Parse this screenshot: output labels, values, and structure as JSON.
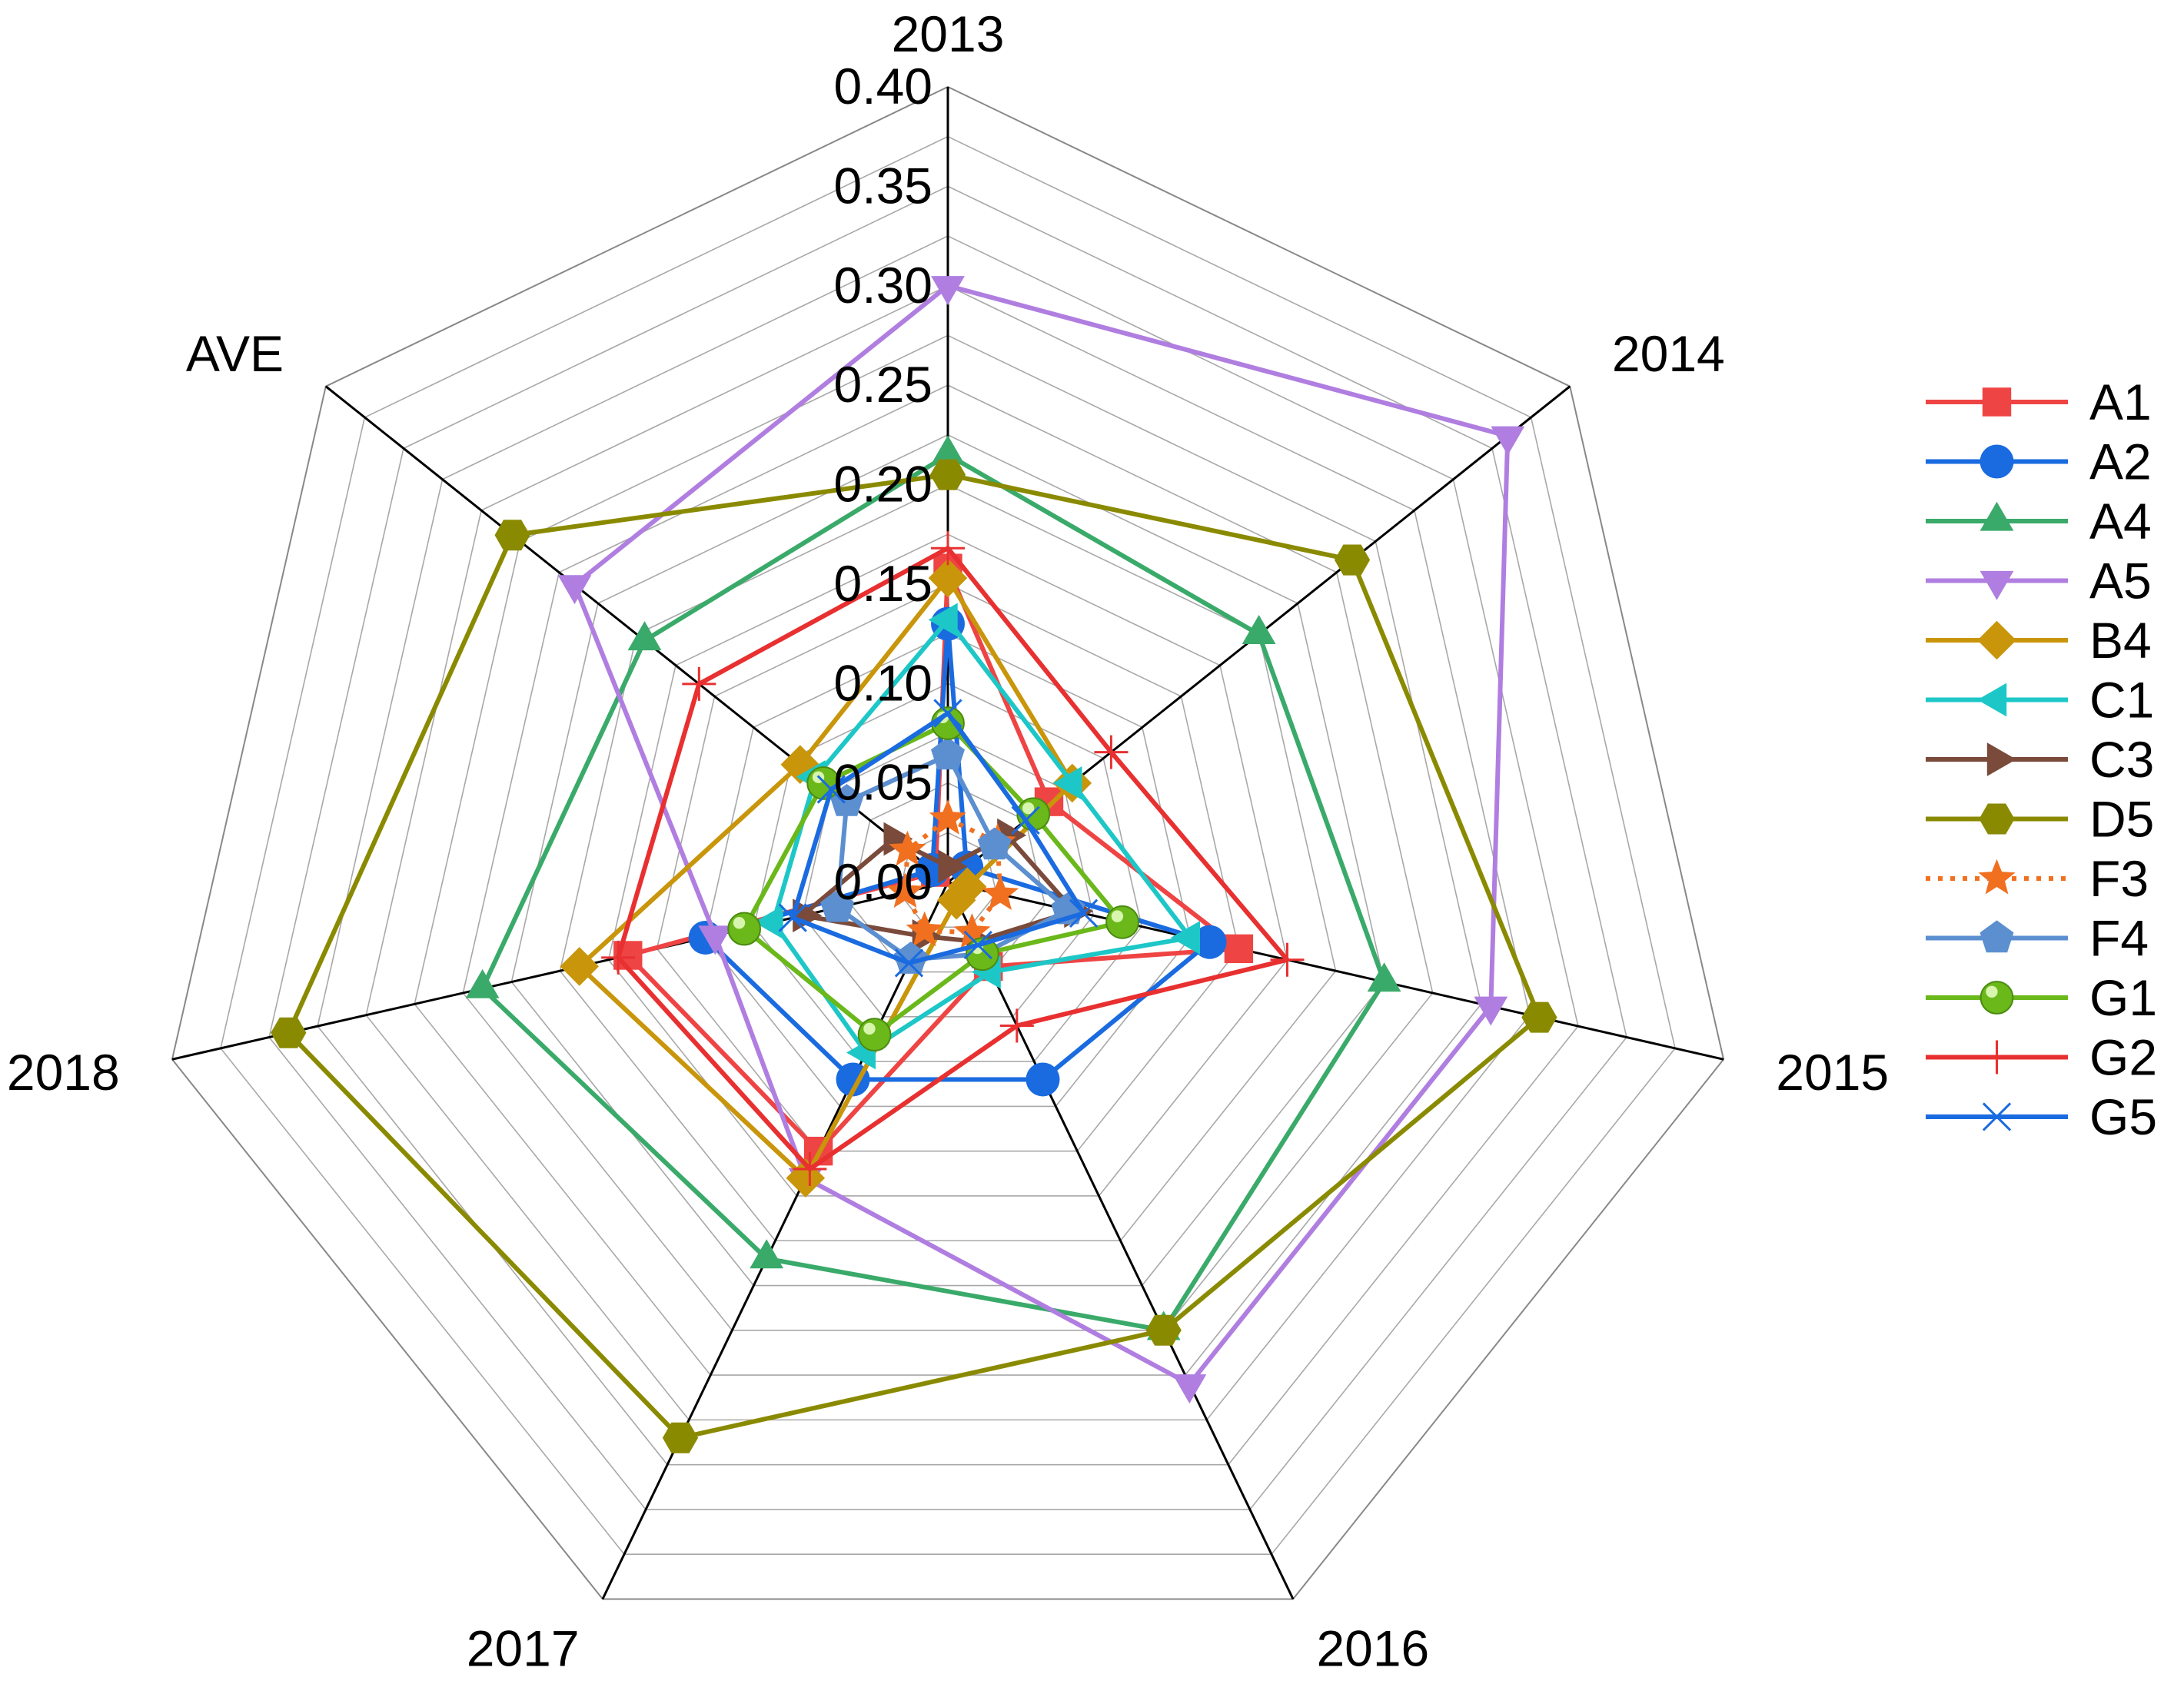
{
  "chart_data": {
    "type": "radar",
    "axes": [
      "2013",
      "2014",
      "2015",
      "2016",
      "2017",
      "2018",
      "AVE"
    ],
    "rmin": 0,
    "rmax": 0.4,
    "ticks": [
      "0.00",
      "0.05",
      "0.10",
      "0.15",
      "0.20",
      "0.25",
      "0.30",
      "0.35",
      "0.40"
    ],
    "minor_grid_step": 0.025,
    "series": [
      {
        "name": "A1",
        "color": "#ef4444",
        "marker": "square",
        "values": [
          0.158,
          0.065,
          0.15,
          0.047,
          0.15,
          0.165,
          0.008
        ]
      },
      {
        "name": "A2",
        "color": "#1a6be0",
        "marker": "circle",
        "values": [
          0.13,
          0.012,
          0.135,
          0.11,
          0.11,
          0.125,
          0.01
        ]
      },
      {
        "name": "A4",
        "color": "#3aaa6a",
        "marker": "triangle-up",
        "values": [
          0.215,
          0.2,
          0.225,
          0.25,
          0.21,
          0.24,
          0.195
        ]
      },
      {
        "name": "A5",
        "color": "#b07ee0",
        "marker": "triangle-down",
        "values": [
          0.3,
          0.36,
          0.28,
          0.28,
          0.165,
          0.12,
          0.24
        ]
      },
      {
        "name": "B4",
        "color": "#c9950a",
        "marker": "diamond",
        "values": [
          0.153,
          0.08,
          0.01,
          0.01,
          0.165,
          0.19,
          0.095
        ]
      },
      {
        "name": "C1",
        "color": "#1ec7c7",
        "marker": "triangle-left",
        "values": [
          0.132,
          0.08,
          0.125,
          0.05,
          0.095,
          0.09,
          0.085
        ]
      },
      {
        "name": "C3",
        "color": "#7a4a3a",
        "marker": "triangle-right",
        "values": [
          0.008,
          0.038,
          0.065,
          0.033,
          0.03,
          0.075,
          0.035
        ]
      },
      {
        "name": "D5",
        "color": "#8a8a00",
        "marker": "hexagon",
        "values": [
          0.205,
          0.26,
          0.305,
          0.25,
          0.31,
          0.34,
          0.28
        ]
      },
      {
        "name": "F3",
        "color": "#f07020",
        "marker": "star",
        "values": [
          0.032,
          0.032,
          0.027,
          0.028,
          0.027,
          0.022,
          0.026
        ]
      },
      {
        "name": "F4",
        "color": "#5b8fd0",
        "marker": "pentagon",
        "values": [
          0.064,
          0.03,
          0.062,
          0.04,
          0.043,
          0.057,
          0.065
        ]
      },
      {
        "name": "G1",
        "color": "#6ab81a",
        "marker": "sphere",
        "values": [
          0.08,
          0.055,
          0.09,
          0.04,
          0.085,
          0.105,
          0.08
        ]
      },
      {
        "name": "G2",
        "color": "#e83030",
        "marker": "plus",
        "values": [
          0.168,
          0.105,
          0.175,
          0.08,
          0.16,
          0.17,
          0.16
        ]
      },
      {
        "name": "G5",
        "color": "#1a6be0",
        "marker": "x",
        "values": [
          0.085,
          0.05,
          0.07,
          0.035,
          0.045,
          0.08,
          0.075
        ]
      }
    ]
  }
}
